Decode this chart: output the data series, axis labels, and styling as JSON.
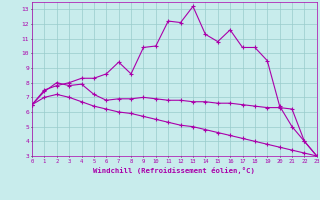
{
  "xlabel": "Windchill (Refroidissement éolien,°C)",
  "background_color": "#c8ecec",
  "line_color": "#aa00aa",
  "grid_color": "#99cccc",
  "x_data": [
    0,
    1,
    2,
    3,
    4,
    5,
    6,
    7,
    8,
    9,
    10,
    11,
    12,
    13,
    14,
    15,
    16,
    17,
    18,
    19,
    20,
    21,
    22,
    23
  ],
  "line1": [
    6.5,
    7.5,
    7.8,
    8.0,
    8.3,
    8.3,
    8.6,
    9.4,
    8.6,
    10.4,
    10.5,
    12.2,
    12.1,
    13.2,
    11.3,
    10.8,
    11.6,
    10.4,
    10.4,
    9.5,
    6.4,
    5.0,
    4.0,
    3.0
  ],
  "line2": [
    6.5,
    7.4,
    8.0,
    7.8,
    7.9,
    7.2,
    6.8,
    6.9,
    6.9,
    7.0,
    6.9,
    6.8,
    6.8,
    6.7,
    6.7,
    6.6,
    6.6,
    6.5,
    6.4,
    6.3,
    6.3,
    6.2,
    4.0,
    3.0
  ],
  "line3": [
    6.5,
    7.0,
    7.2,
    7.0,
    6.7,
    6.4,
    6.2,
    6.0,
    5.9,
    5.7,
    5.5,
    5.3,
    5.1,
    5.0,
    4.8,
    4.6,
    4.4,
    4.2,
    4.0,
    3.8,
    3.6,
    3.4,
    3.2,
    3.0
  ],
  "xlim": [
    0,
    23
  ],
  "ylim": [
    3,
    13.5
  ],
  "yticks": [
    3,
    4,
    5,
    6,
    7,
    8,
    9,
    10,
    11,
    12,
    13
  ],
  "xticks": [
    0,
    1,
    2,
    3,
    4,
    5,
    6,
    7,
    8,
    9,
    10,
    11,
    12,
    13,
    14,
    15,
    16,
    17,
    18,
    19,
    20,
    21,
    22,
    23
  ]
}
